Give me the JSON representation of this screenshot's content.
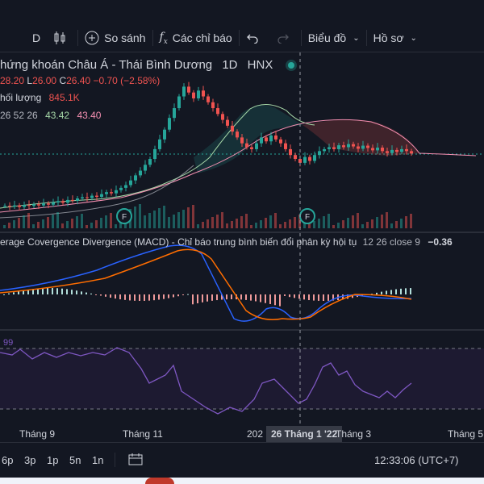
{
  "toolbar": {
    "interval": "D",
    "compare_label": "So sánh",
    "indicators_label": "Các chỉ báo",
    "chart_type_label": "Biểu đồ",
    "profile_label": "Hồ sơ"
  },
  "symbol": {
    "title": "hứng khoán Châu Á - Thái Bình Dương",
    "interval": "1D",
    "exchange": "HNX",
    "ohlc": {
      "h": "28.20",
      "l": "26.00",
      "c": "26.40",
      "chg": "−0.70 (−2.58%)"
    },
    "ohlc_prefix": {
      "l": "L",
      "c": "C"
    }
  },
  "volume": {
    "label": "hối lượng",
    "value": "845.1K"
  },
  "ichimoku": {
    "params": "26 52 26",
    "v1": "43.42",
    "v2": "43.40"
  },
  "macd": {
    "label": "erage Covergence Divergence (MACD) - Chỉ báo trung bình biến đổi phân kỳ hội tụ",
    "params": "12 26 close 9",
    "value": "−0.36"
  },
  "rsi": {
    "level": "99"
  },
  "events": [
    {
      "letter": "F"
    },
    {
      "letter": "F"
    }
  ],
  "time_axis": {
    "labels": [
      "Tháng 9",
      "Tháng 11",
      "202",
      "Tháng 3",
      "Tháng 5"
    ],
    "crosshair": "26 Tháng 1 '22"
  },
  "ranges": [
    "6p",
    "3p",
    "1p",
    "5n",
    "1n"
  ],
  "clock": "12:33:06 (UTC+7)",
  "colors": {
    "up": "#26a69a",
    "down": "#ef5350",
    "macd": "#2962ff",
    "signal": "#ff6d00",
    "rsi": "#7e57c2"
  },
  "chart_data": {
    "type": "candlestick",
    "series": [
      {
        "name": "price",
        "values": [
          13,
          12.8,
          13.1,
          12.7,
          13.2,
          13.0,
          13.4,
          13.1,
          13.6,
          13.3,
          13.9,
          14.2,
          13.8,
          14.5,
          14.3,
          14.9,
          15.2,
          15.0,
          15.6,
          15.3,
          16.0,
          16.5,
          16.2,
          17.0,
          17.6,
          18.3,
          19.5,
          20.8,
          22.0,
          23.5,
          25.0,
          27.5,
          30.0,
          32.5,
          35.5,
          38.0,
          41.0,
          43.5,
          42.0,
          40.5,
          42.5,
          41.0,
          39.5,
          38.0,
          36.5,
          35.0,
          33.5,
          32.0,
          30.5,
          29.0,
          28.0,
          27.5,
          29.0,
          30.5,
          29.5,
          31.0,
          30.0,
          29.0,
          27.5,
          26.0,
          25.0,
          24.0,
          25.5,
          24.5,
          26.0,
          27.0,
          27.5,
          28.0,
          27.5,
          28.5,
          28.0,
          28.8,
          28.2,
          27.6,
          28.4,
          27.8,
          27.2,
          27.9,
          27.0,
          26.5,
          27.3,
          26.8,
          27.5,
          27.0,
          26.4
        ]
      }
    ]
  }
}
